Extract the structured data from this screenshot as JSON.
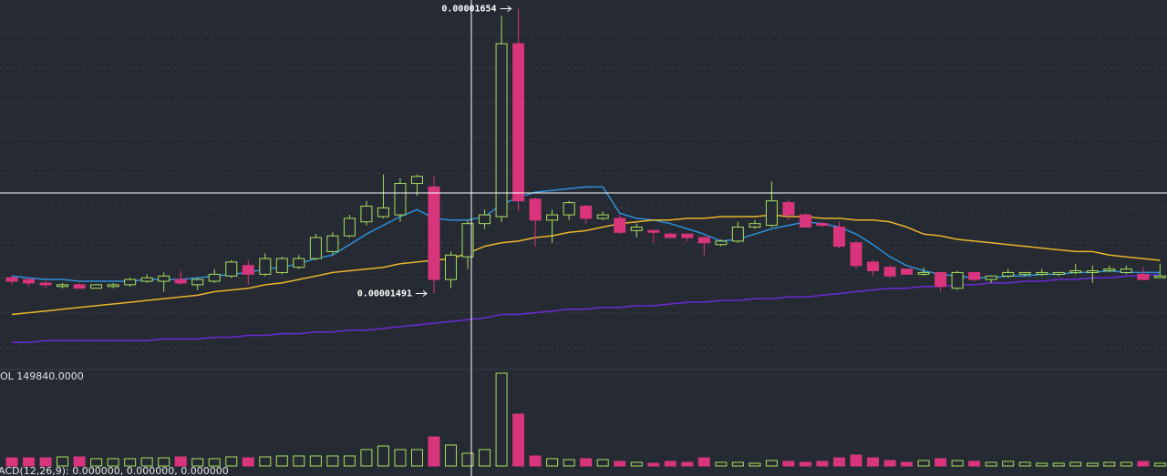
{
  "chart_data": {
    "type": "candlestick",
    "ylim": [
      1.448e-05,
      1.659e-05
    ],
    "grid_y": [
      1.46e-05,
      1.48e-05,
      1.5e-05,
      1.52e-05,
      1.54e-05,
      1.56e-05,
      1.58e-05,
      1.6e-05,
      1.62e-05,
      1.64e-05
    ],
    "up_color": "#a8e05f",
    "down_color": "#d8357c",
    "open": [
      1.5e-05,
      1.499e-05,
      1.497e-05,
      1.495e-05,
      1.496e-05,
      1.494e-05,
      1.495e-05,
      1.496e-05,
      1.498e-05,
      1.498e-05,
      1.499e-05,
      1.496e-05,
      1.498e-05,
      1.501e-05,
      1.507e-05,
      1.502e-05,
      1.503e-05,
      1.506e-05,
      1.511e-05,
      1.515e-05,
      1.524e-05,
      1.532e-05,
      1.535e-05,
      1.536e-05,
      1.554e-05,
      1.552e-05,
      1.499e-05,
      1.512e-05,
      1.531e-05,
      1.535e-05,
      1.634e-05,
      1.545e-05,
      1.533e-05,
      1.536e-05,
      1.541e-05,
      1.534e-05,
      1.534e-05,
      1.527e-05,
      1.527e-05,
      1.525e-05,
      1.525e-05,
      1.523e-05,
      1.519e-05,
      1.521e-05,
      1.529e-05,
      1.53e-05,
      1.543e-05,
      1.536e-05,
      1.531e-05,
      1.529e-05,
      1.52e-05,
      1.509e-05,
      1.506e-05,
      1.505e-05,
      1.502e-05,
      1.503e-05,
      1.494e-05,
      1.503e-05,
      1.499e-05,
      1.501e-05,
      1.502e-05,
      1.502e-05,
      1.502e-05,
      1.503e-05,
      1.503e-05,
      1.504e-05,
      1.503e-05,
      1.502e-05,
      1.5e-05
    ],
    "high": [
      1.501e-05,
      1.5e-05,
      1.498e-05,
      1.497e-05,
      1.497e-05,
      1.496e-05,
      1.497e-05,
      1.5e-05,
      1.502e-05,
      1.503e-05,
      1.504e-05,
      1.5e-05,
      1.505e-05,
      1.51e-05,
      1.51e-05,
      1.514e-05,
      1.512e-05,
      1.513e-05,
      1.525e-05,
      1.526e-05,
      1.536e-05,
      1.544e-05,
      1.559e-05,
      1.557e-05,
      1.559e-05,
      1.558e-05,
      1.515e-05,
      1.533e-05,
      1.539e-05,
      1.65e-05,
      1.654e-05,
      1.546e-05,
      1.539e-05,
      1.544e-05,
      1.542e-05,
      1.538e-05,
      1.536e-05,
      1.531e-05,
      1.528e-05,
      1.526e-05,
      1.525e-05,
      1.524e-05,
      1.522e-05,
      1.532e-05,
      1.533e-05,
      1.555e-05,
      1.545e-05,
      1.537e-05,
      1.532e-05,
      1.532e-05,
      1.521e-05,
      1.51e-05,
      1.507e-05,
      1.505e-05,
      1.506e-05,
      1.503e-05,
      1.504e-05,
      1.503e-05,
      1.501e-05,
      1.505e-05,
      1.503e-05,
      1.505e-05,
      1.503e-05,
      1.508e-05,
      1.507e-05,
      1.507e-05,
      1.507e-05,
      1.506e-05,
      1.508e-05
    ],
    "low": [
      1.496e-05,
      1.495e-05,
      1.494e-05,
      1.494e-05,
      1.494e-05,
      1.494e-05,
      1.494e-05,
      1.495e-05,
      1.497e-05,
      1.492e-05,
      1.496e-05,
      1.493e-05,
      1.497e-05,
      1.5e-05,
      1.496e-05,
      1.501e-05,
      1.502e-05,
      1.505e-05,
      1.51e-05,
      1.513e-05,
      1.523e-05,
      1.53e-05,
      1.534e-05,
      1.532e-05,
      1.547e-05,
      1.491e-05,
      1.494e-05,
      1.505e-05,
      1.528e-05,
      1.532e-05,
      1.538e-05,
      1.518e-05,
      1.52e-05,
      1.533e-05,
      1.531e-05,
      1.533e-05,
      1.525e-05,
      1.523e-05,
      1.52e-05,
      1.523e-05,
      1.521e-05,
      1.513e-05,
      1.518e-05,
      1.52e-05,
      1.528e-05,
      1.529e-05,
      1.533e-05,
      1.529e-05,
      1.529e-05,
      1.517e-05,
      1.505e-05,
      1.501e-05,
      1.5e-05,
      1.502e-05,
      1.501e-05,
      1.492e-05,
      1.493e-05,
      1.498e-05,
      1.497e-05,
      1.5e-05,
      1.501e-05,
      1.501e-05,
      1.501e-05,
      1.502e-05,
      1.497e-05,
      1.503e-05,
      1.502e-05,
      1.499e-05,
      1.5e-05
    ],
    "close": [
      1.498e-05,
      1.497e-05,
      1.496e-05,
      1.496e-05,
      1.494e-05,
      1.496e-05,
      1.496e-05,
      1.499e-05,
      1.5e-05,
      1.501e-05,
      1.497e-05,
      1.499e-05,
      1.502e-05,
      1.509e-05,
      1.502e-05,
      1.511e-05,
      1.511e-05,
      1.511e-05,
      1.523e-05,
      1.524e-05,
      1.534e-05,
      1.541e-05,
      1.54e-05,
      1.554e-05,
      1.558e-05,
      1.499e-05,
      1.513e-05,
      1.531e-05,
      1.536e-05,
      1.634e-05,
      1.544e-05,
      1.533e-05,
      1.536e-05,
      1.543e-05,
      1.534e-05,
      1.536e-05,
      1.526e-05,
      1.529e-05,
      1.526e-05,
      1.523e-05,
      1.523e-05,
      1.52e-05,
      1.521e-05,
      1.529e-05,
      1.531e-05,
      1.544e-05,
      1.536e-05,
      1.529e-05,
      1.53e-05,
      1.518e-05,
      1.507e-05,
      1.504e-05,
      1.501e-05,
      1.502e-05,
      1.503e-05,
      1.495e-05,
      1.503e-05,
      1.499e-05,
      1.501e-05,
      1.503e-05,
      1.503e-05,
      1.503e-05,
      1.503e-05,
      1.504e-05,
      1.504e-05,
      1.505e-05,
      1.505e-05,
      1.499e-05,
      1.501e-05
    ],
    "indicators": [
      {
        "color": "#2f8fd6",
        "values": [
          1.501e-05,
          1.5e-05,
          1.499e-05,
          1.499e-05,
          1.498e-05,
          1.498e-05,
          1.498e-05,
          1.498e-05,
          1.499e-05,
          1.499e-05,
          1.499e-05,
          1.5e-05,
          1.501e-05,
          1.502e-05,
          1.503e-05,
          1.505e-05,
          1.506e-05,
          1.508e-05,
          1.511e-05,
          1.513e-05,
          1.519e-05,
          1.525e-05,
          1.53e-05,
          1.535e-05,
          1.539e-05,
          1.534e-05,
          1.533e-05,
          1.533e-05,
          1.535e-05,
          1.542e-05,
          1.546e-05,
          1.549e-05,
          1.55e-05,
          1.551e-05,
          1.552e-05,
          1.552e-05,
          1.537e-05,
          1.534e-05,
          1.533e-05,
          1.531e-05,
          1.528e-05,
          1.525e-05,
          1.521e-05,
          1.522e-05,
          1.525e-05,
          1.528e-05,
          1.53e-05,
          1.532e-05,
          1.531e-05,
          1.529e-05,
          1.525e-05,
          1.519e-05,
          1.512e-05,
          1.507e-05,
          1.504e-05,
          1.502e-05,
          1.501e-05,
          1.5e-05,
          1.5e-05,
          1.501e-05,
          1.501e-05,
          1.502e-05,
          1.502e-05,
          1.503e-05,
          1.503e-05,
          1.504e-05,
          1.503e-05,
          1.503e-05,
          1.503e-05
        ]
      },
      {
        "color": "#e9b52c",
        "values": [
          1.479e-05,
          1.48e-05,
          1.481e-05,
          1.482e-05,
          1.483e-05,
          1.484e-05,
          1.485e-05,
          1.486e-05,
          1.487e-05,
          1.488e-05,
          1.489e-05,
          1.49e-05,
          1.492e-05,
          1.493e-05,
          1.494e-05,
          1.496e-05,
          1.497e-05,
          1.499e-05,
          1.501e-05,
          1.503e-05,
          1.504e-05,
          1.505e-05,
          1.506e-05,
          1.508e-05,
          1.509e-05,
          1.51e-05,
          1.511e-05,
          1.514e-05,
          1.518e-05,
          1.52e-05,
          1.521e-05,
          1.523e-05,
          1.524e-05,
          1.526e-05,
          1.527e-05,
          1.529e-05,
          1.531e-05,
          1.532e-05,
          1.533e-05,
          1.533e-05,
          1.534e-05,
          1.534e-05,
          1.535e-05,
          1.535e-05,
          1.535e-05,
          1.536e-05,
          1.535e-05,
          1.535e-05,
          1.534e-05,
          1.534e-05,
          1.533e-05,
          1.533e-05,
          1.532e-05,
          1.529e-05,
          1.525e-05,
          1.524e-05,
          1.522e-05,
          1.521e-05,
          1.52e-05,
          1.519e-05,
          1.518e-05,
          1.517e-05,
          1.516e-05,
          1.515e-05,
          1.515e-05,
          1.513e-05,
          1.512e-05,
          1.511e-05,
          1.51e-05
        ]
      },
      {
        "color": "#6a2bd6",
        "values": [
          1.463e-05,
          1.463e-05,
          1.464e-05,
          1.464e-05,
          1.464e-05,
          1.464e-05,
          1.464e-05,
          1.464e-05,
          1.464e-05,
          1.465e-05,
          1.465e-05,
          1.465e-05,
          1.466e-05,
          1.466e-05,
          1.467e-05,
          1.467e-05,
          1.468e-05,
          1.468e-05,
          1.469e-05,
          1.469e-05,
          1.47e-05,
          1.47e-05,
          1.471e-05,
          1.472e-05,
          1.473e-05,
          1.474e-05,
          1.475e-05,
          1.476e-05,
          1.477e-05,
          1.479e-05,
          1.479e-05,
          1.48e-05,
          1.481e-05,
          1.482e-05,
          1.482e-05,
          1.483e-05,
          1.483e-05,
          1.484e-05,
          1.484e-05,
          1.485e-05,
          1.486e-05,
          1.486e-05,
          1.487e-05,
          1.487e-05,
          1.488e-05,
          1.488e-05,
          1.489e-05,
          1.489e-05,
          1.49e-05,
          1.491e-05,
          1.492e-05,
          1.493e-05,
          1.494e-05,
          1.494e-05,
          1.495e-05,
          1.495e-05,
          1.496e-05,
          1.496e-05,
          1.497e-05,
          1.497e-05,
          1.498e-05,
          1.498e-05,
          1.499e-05,
          1.499e-05,
          1.5e-05,
          1.5e-05,
          1.501e-05,
          1.501e-05,
          1.502e-05
        ]
      }
    ],
    "volume": {
      "label": "OL 149840.0000",
      "ylim": [
        0,
        1113000
      ],
      "values": [
        96000,
        96000,
        96000,
        107000,
        107000,
        86000,
        86000,
        86000,
        96000,
        96000,
        107000,
        86000,
        86000,
        107000,
        96000,
        107000,
        118000,
        118000,
        118000,
        118000,
        118000,
        193000,
        235000,
        193000,
        193000,
        342000,
        246000,
        149840,
        193000,
        1091000,
        610000,
        118000,
        86000,
        75000,
        86000,
        75000,
        54000,
        43000,
        32000,
        54000,
        43000,
        96000,
        43000,
        43000,
        32000,
        64000,
        54000,
        43000,
        54000,
        96000,
        128000,
        96000,
        64000,
        43000,
        64000,
        86000,
        64000,
        54000,
        43000,
        54000,
        43000,
        32000,
        32000,
        43000,
        32000,
        43000,
        43000,
        54000,
        32000
      ]
    },
    "macd_label": "ACD(12,26,9): 0.000000, 0.000000, 0.000000"
  }
}
